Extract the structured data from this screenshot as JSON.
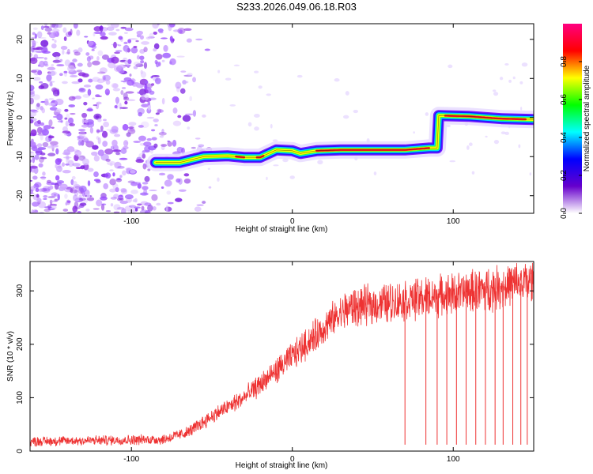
{
  "title": "S233.2026.049.06.18.R03",
  "chart_data": [
    {
      "type": "heatmap",
      "name": "spectrogram",
      "xlabel": "Height of straight line (km)",
      "ylabel": "Frequency (Hz)",
      "xlim": [
        -163,
        150
      ],
      "ylim": [
        -24.5,
        24
      ],
      "xticks": [
        -100,
        0,
        100
      ],
      "yticks": [
        -20,
        -10,
        0,
        10,
        20
      ],
      "colorbar": {
        "label": "Normalized spectral amplitude",
        "range": [
          0,
          1
        ],
        "ticks": [
          "0.0",
          "0.2",
          "0.4",
          "0.6",
          "0.8"
        ],
        "colors": [
          "#ffffff",
          "#6600cc",
          "#0000ff",
          "#00ffff",
          "#00ff00",
          "#ffff00",
          "#ff0000",
          "#ff0080"
        ]
      },
      "signal_track": [
        {
          "x": -85,
          "y": -11.5
        },
        {
          "x": -70,
          "y": -11.5
        },
        {
          "x": -55,
          "y": -10
        },
        {
          "x": -40,
          "y": -9.8
        },
        {
          "x": -30,
          "y": -10.2
        },
        {
          "x": -20,
          "y": -10.2
        },
        {
          "x": -10,
          "y": -8.3
        },
        {
          "x": 0,
          "y": -8.5
        },
        {
          "x": 5,
          "y": -9.2
        },
        {
          "x": 15,
          "y": -8.5
        },
        {
          "x": 30,
          "y": -8.3
        },
        {
          "x": 50,
          "y": -8.3
        },
        {
          "x": 70,
          "y": -8.3
        },
        {
          "x": 85,
          "y": -7.8
        },
        {
          "x": 90,
          "y": -7.8
        },
        {
          "x": 91,
          "y": 0.5
        },
        {
          "x": 110,
          "y": 0.3
        },
        {
          "x": 130,
          "y": -0.3
        },
        {
          "x": 150,
          "y": -0.5
        }
      ],
      "noise_region_x": [
        -163,
        -75
      ]
    },
    {
      "type": "line",
      "name": "snr",
      "xlabel": "Height of straight line (km)",
      "ylabel": "SNR (10 * v/v)",
      "xlim": [
        -163,
        150
      ],
      "ylim": [
        0,
        355
      ],
      "xticks": [
        -100,
        0,
        100
      ],
      "yticks": [
        0,
        100,
        200,
        300
      ],
      "color": "#ee3333",
      "trend": [
        {
          "x": -163,
          "y": 18
        },
        {
          "x": -120,
          "y": 20
        },
        {
          "x": -80,
          "y": 22
        },
        {
          "x": -65,
          "y": 35
        },
        {
          "x": -50,
          "y": 65
        },
        {
          "x": -30,
          "y": 100
        },
        {
          "x": -10,
          "y": 150
        },
        {
          "x": 10,
          "y": 205
        },
        {
          "x": 25,
          "y": 245
        },
        {
          "x": 35,
          "y": 268
        },
        {
          "x": 60,
          "y": 278
        },
        {
          "x": 90,
          "y": 290
        },
        {
          "x": 120,
          "y": 303
        },
        {
          "x": 150,
          "y": 318
        }
      ],
      "dropouts_x": [
        70,
        83,
        90,
        96,
        102,
        108,
        114,
        120,
        126,
        131,
        137,
        142,
        146
      ],
      "dropout_floor": 12
    }
  ]
}
